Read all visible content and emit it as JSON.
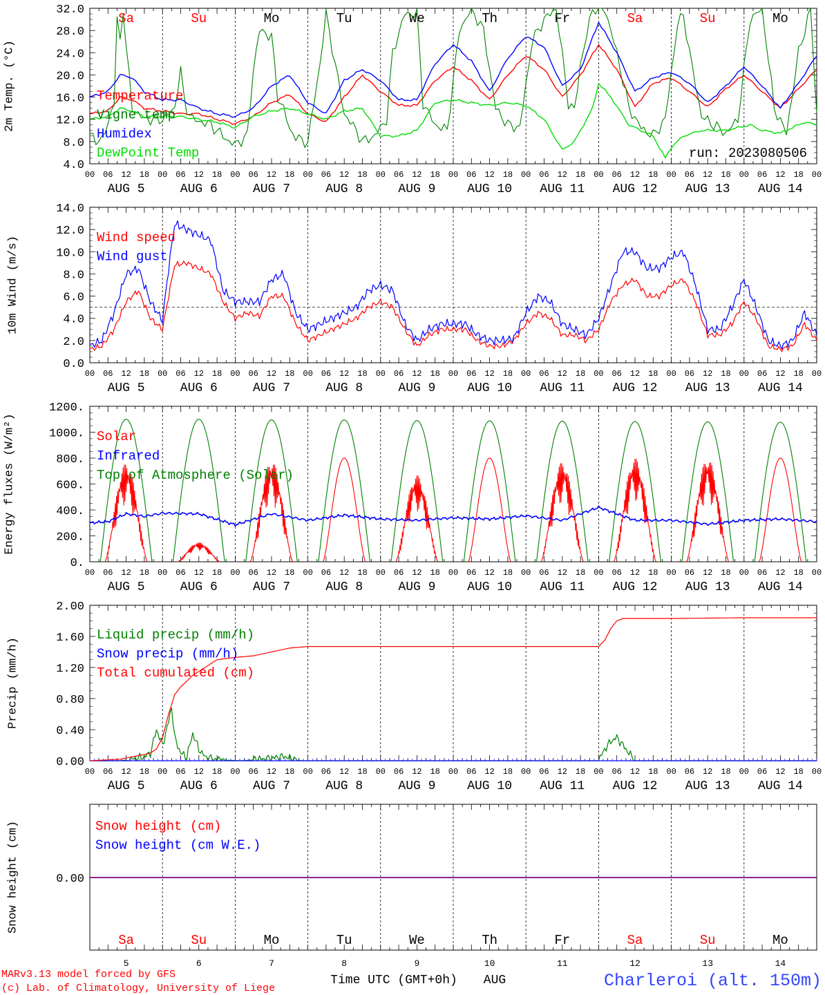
{
  "page": {
    "footer_left_1": "MARv3.13 model forced by GFS",
    "footer_left_2": "(c) Lab. of Climatology, University of Liege",
    "footer_center": "Time UTC (GMT+0h)",
    "footer_month": "AUG",
    "footer_right": "Charleroi (alt. 150m)",
    "colors": {
      "red": "#ff0000",
      "blue": "#0000ff",
      "dark_green": "#008000",
      "light_green": "#00dd00",
      "purple": "#800080"
    }
  },
  "axes": {
    "hour_ticks": [
      "00",
      "06",
      "12",
      "18",
      "00",
      "06",
      "12",
      "18",
      "00",
      "06",
      "12",
      "18",
      "00",
      "06",
      "12",
      "18",
      "00",
      "06",
      "12",
      "18",
      "00",
      "06",
      "12",
      "18",
      "00",
      "06",
      "12",
      "18",
      "00",
      "06",
      "12",
      "18",
      "00",
      "06",
      "12",
      "18",
      "00",
      "06",
      "12",
      "18",
      "00"
    ],
    "date_labels": [
      "AUG  5",
      "AUG  6",
      "AUG  7",
      "AUG  8",
      "AUG  9",
      "AUG 10",
      "AUG 11",
      "AUG 12",
      "AUG 13",
      "AUG 14"
    ],
    "day_names": [
      "Sa",
      "Su",
      "Mo",
      "Tu",
      "We",
      "Th",
      "Fr",
      "Sa",
      "Su",
      "Mo"
    ],
    "day_name_colors": [
      "#ff0000",
      "#ff0000",
      "#000000",
      "#000000",
      "#000000",
      "#000000",
      "#000000",
      "#ff0000",
      "#ff0000",
      "#000000"
    ],
    "day_numbers": [
      "5",
      "6",
      "7",
      "8",
      "9",
      "10",
      "11",
      "12",
      "13",
      "14"
    ]
  },
  "chart_data": [
    {
      "type": "line",
      "ylabel": "2m Temp. (°C)",
      "ylim": [
        4,
        32
      ],
      "yticks": [
        "4.0",
        "8.0",
        "12.0",
        "16.0",
        "20.0",
        "24.0",
        "28.0",
        "32.0"
      ],
      "annotation": "run: 2023080506",
      "x_unit": "hours since AUG 5 00 UTC",
      "series": [
        {
          "name": "Temperature",
          "color": "#ff0000",
          "x": [
            0,
            6,
            10,
            14,
            18,
            24,
            30,
            36,
            42,
            48,
            54,
            60,
            66,
            72,
            78,
            84,
            90,
            96,
            102,
            108,
            114,
            120,
            126,
            132,
            138,
            144,
            150,
            156,
            162,
            168,
            174,
            180,
            186,
            192,
            198,
            204,
            210,
            216,
            222,
            228,
            234,
            240
          ],
          "y": [
            13,
            13.5,
            16,
            15.5,
            14,
            13.5,
            13,
            13,
            12,
            11.2,
            12.5,
            15,
            16.5,
            13,
            11.5,
            16,
            20,
            17,
            14.5,
            14.5,
            19,
            21.5,
            19,
            15.5,
            20,
            23.5,
            21,
            16,
            20,
            25.5,
            21,
            14.2,
            18.5,
            19.5,
            17,
            14.2,
            17.5,
            20,
            17,
            14,
            17.5,
            21
          ]
        },
        {
          "name": "Vigne temp",
          "color": "#008000",
          "x": [
            0,
            4,
            8,
            9,
            10,
            11,
            12,
            14,
            16,
            18,
            24,
            28,
            30,
            31,
            32,
            34,
            40,
            46,
            48,
            52,
            54,
            56,
            60,
            62,
            64,
            66,
            70,
            72,
            76,
            78,
            80,
            84,
            88,
            90,
            94,
            98,
            100,
            104,
            108,
            110,
            114,
            118,
            122,
            126,
            130,
            134,
            138,
            142,
            146,
            150,
            154,
            158,
            160,
            162,
            166,
            170,
            174,
            178,
            182,
            186,
            190,
            194,
            196,
            198,
            202,
            206,
            210,
            214,
            218,
            222,
            226,
            230,
            234,
            238,
            240
          ],
          "y": [
            9,
            8,
            15,
            30,
            26,
            32,
            25,
            14,
            13,
            12,
            12,
            14,
            21,
            16,
            14,
            12,
            11,
            8,
            7.5,
            9,
            21,
            28,
            27,
            16,
            14,
            10,
            8,
            8,
            22,
            31,
            25,
            13,
            10,
            8,
            9,
            12,
            24,
            31,
            31,
            15,
            11,
            10,
            28,
            32,
            28,
            14,
            11,
            10.5,
            26,
            30,
            32,
            15,
            13.5,
            22,
            32,
            32,
            24,
            14,
            10.5,
            9,
            12,
            29,
            31,
            24,
            12.5,
            11,
            9.5,
            12,
            30,
            32,
            14,
            9.5,
            24,
            32,
            13
          ]
        },
        {
          "name": "Humidex",
          "color": "#0000ff",
          "x": [
            0,
            6,
            10,
            14,
            18,
            24,
            30,
            36,
            42,
            48,
            54,
            60,
            66,
            72,
            78,
            84,
            90,
            96,
            102,
            108,
            114,
            120,
            126,
            132,
            138,
            144,
            150,
            156,
            162,
            168,
            174,
            180,
            186,
            192,
            198,
            204,
            210,
            216,
            222,
            228,
            234,
            240
          ],
          "y": [
            16,
            17,
            20,
            19.5,
            17,
            15.5,
            15.5,
            14,
            13,
            12.5,
            14,
            18,
            20,
            15,
            13,
            19,
            21,
            19,
            15.5,
            15.5,
            22,
            25.5,
            22.5,
            17,
            23,
            27,
            25,
            18,
            21,
            29.5,
            24,
            17,
            19.5,
            20.5,
            18.5,
            15,
            18,
            21.5,
            18,
            14,
            18.5,
            23.5
          ]
        },
        {
          "name": "DewPoint Temp",
          "color": "#00dd00",
          "x": [
            0,
            6,
            10,
            14,
            18,
            24,
            30,
            36,
            42,
            48,
            54,
            60,
            66,
            72,
            78,
            84,
            90,
            96,
            102,
            108,
            114,
            120,
            126,
            132,
            138,
            144,
            150,
            156,
            160,
            166,
            168,
            172,
            178,
            186,
            190,
            192,
            196,
            202,
            210,
            218,
            222,
            228,
            236,
            240
          ],
          "y": [
            12,
            12.5,
            14,
            13.5,
            12.5,
            12.5,
            12.5,
            12,
            11.5,
            10.5,
            12.5,
            13.5,
            14,
            13,
            12,
            13.5,
            14,
            9,
            9,
            10,
            15,
            15.5,
            15,
            14.5,
            15,
            14.5,
            12,
            6.5,
            8,
            14,
            18.5,
            16,
            11,
            9,
            5,
            7,
            9,
            10,
            10,
            11,
            10,
            9.5,
            11.5,
            11
          ]
        }
      ]
    },
    {
      "type": "line",
      "ylabel": "10m Wind (m/s)",
      "ylim": [
        0,
        14
      ],
      "yticks": [
        "0.0",
        "2.0",
        "4.0",
        "6.0",
        "8.0",
        "10.0",
        "12.0",
        "14.0"
      ],
      "reference_line": 5,
      "series": [
        {
          "name": "Wind speed",
          "color": "#ff0000",
          "x": [
            0,
            4,
            8,
            12,
            16,
            20,
            24,
            26,
            28,
            32,
            36,
            40,
            44,
            48,
            52,
            56,
            60,
            64,
            68,
            72,
            76,
            80,
            84,
            88,
            92,
            96,
            100,
            104,
            108,
            112,
            116,
            120,
            124,
            128,
            132,
            136,
            140,
            144,
            148,
            152,
            156,
            160,
            164,
            168,
            172,
            176,
            180,
            184,
            188,
            192,
            196,
            200,
            204,
            208,
            212,
            216,
            220,
            224,
            228,
            232,
            236,
            240
          ],
          "y": [
            1.2,
            1.5,
            3,
            5.5,
            6.5,
            4,
            3,
            6,
            8.8,
            9,
            8.5,
            8,
            5.5,
            4,
            4.5,
            4.2,
            6,
            6,
            3.5,
            2,
            2.5,
            3,
            3.5,
            4,
            5,
            5.5,
            5,
            3,
            1.5,
            2.5,
            3,
            3,
            3,
            2,
            1.5,
            1.5,
            2,
            3.5,
            4.5,
            4,
            2.5,
            2.5,
            2,
            3,
            5.5,
            7,
            7.5,
            6,
            6,
            7,
            7.5,
            5.5,
            2.5,
            2.5,
            3.5,
            5.5,
            4,
            1.5,
            1.2,
            1.5,
            3.5,
            2
          ]
        },
        {
          "name": "Wind gust",
          "color": "#0000ff",
          "x": [
            0,
            4,
            8,
            12,
            16,
            20,
            24,
            26,
            28,
            32,
            36,
            40,
            44,
            48,
            52,
            56,
            60,
            64,
            68,
            72,
            76,
            80,
            84,
            88,
            92,
            96,
            100,
            104,
            108,
            112,
            116,
            120,
            124,
            128,
            132,
            136,
            140,
            144,
            148,
            152,
            156,
            160,
            164,
            168,
            172,
            176,
            180,
            184,
            188,
            192,
            196,
            200,
            204,
            208,
            212,
            216,
            220,
            224,
            228,
            232,
            236,
            240
          ],
          "y": [
            1.5,
            2,
            4.5,
            8,
            8.5,
            5.5,
            3.8,
            8.5,
            12.5,
            12,
            11.5,
            11,
            6.5,
            5.5,
            5.5,
            5.5,
            7.5,
            8,
            4.5,
            3,
            3.5,
            4,
            4.5,
            5,
            6.5,
            7,
            6.5,
            3.5,
            2,
            3,
            3.5,
            3.5,
            3.5,
            2.5,
            2,
            2,
            2.2,
            4.5,
            6,
            5.5,
            3.5,
            3,
            2.5,
            4,
            7,
            10,
            10,
            8.5,
            8.5,
            9.5,
            10,
            7,
            3,
            3,
            5,
            7.5,
            5,
            2,
            1.5,
            2,
            4.5,
            2.5
          ]
        }
      ]
    },
    {
      "type": "line",
      "ylabel": "Energy fluxes (W/m²)",
      "ylim": [
        0,
        1200
      ],
      "yticks": [
        "0.",
        "200.",
        "400.",
        "600.",
        "800.",
        "1000.",
        "1200."
      ],
      "series": [
        {
          "name": "Solar",
          "color": "#ff0000",
          "daily_peak": [
            760,
            150,
            780,
            800,
            670,
            800,
            770,
            800,
            800,
            800
          ]
        },
        {
          "name": "Infrared",
          "color": "#0000ff",
          "x": [
            0,
            6,
            12,
            18,
            24,
            36,
            48,
            60,
            72,
            84,
            96,
            108,
            120,
            132,
            144,
            156,
            168,
            180,
            192,
            204,
            216,
            228,
            240
          ],
          "y": [
            300,
            310,
            370,
            350,
            375,
            370,
            285,
            370,
            320,
            360,
            330,
            320,
            340,
            330,
            355,
            320,
            420,
            320,
            320,
            290,
            320,
            330,
            310
          ]
        },
        {
          "name": "Top of Atmosphere (Solar)",
          "color": "#008000",
          "daily_peak": [
            1100,
            1100,
            1095,
            1095,
            1090,
            1088,
            1085,
            1083,
            1080,
            1078
          ]
        }
      ]
    },
    {
      "type": "line",
      "ylabel": "Precip (mm/h)",
      "ylim": [
        0,
        2
      ],
      "yticks": [
        "0.00",
        "0.40",
        "0.80",
        "1.20",
        "1.60",
        "2.00"
      ],
      "series": [
        {
          "name": "Liquid precip (mm/h)",
          "color": "#008000",
          "x": [
            0,
            10,
            14,
            18,
            20,
            22,
            24,
            26,
            27,
            28,
            30,
            32,
            34,
            36,
            38,
            40,
            44,
            50,
            56,
            60,
            64,
            66,
            70,
            168,
            170,
            172,
            174,
            176,
            178,
            180,
            240
          ],
          "y": [
            0,
            0,
            0.02,
            0.05,
            0.1,
            0.4,
            0.2,
            0.5,
            0.7,
            0.3,
            0.1,
            0.05,
            0.35,
            0.15,
            0.05,
            0.03,
            0.01,
            0,
            0.02,
            0.03,
            0.06,
            0.03,
            0,
            0,
            0.15,
            0.25,
            0.3,
            0.2,
            0.1,
            0,
            0
          ]
        },
        {
          "name": "Snow precip (mm/h)",
          "color": "#0000ff",
          "x": [
            0,
            240
          ],
          "y": [
            0,
            0
          ]
        },
        {
          "name": "Total cumulated (cm)",
          "color": "#ff0000",
          "x": [
            0,
            10,
            14,
            18,
            20,
            22,
            24,
            26,
            28,
            30,
            34,
            38,
            42,
            48,
            54,
            60,
            66,
            72,
            84,
            96,
            168,
            170,
            172,
            174,
            176,
            180,
            192,
            216,
            240
          ],
          "y": [
            0,
            0.02,
            0.05,
            0.08,
            0.1,
            0.15,
            0.3,
            0.6,
            0.85,
            0.95,
            1.1,
            1.2,
            1.3,
            1.33,
            1.35,
            1.4,
            1.45,
            1.47,
            1.47,
            1.47,
            1.47,
            1.55,
            1.7,
            1.8,
            1.83,
            1.83,
            1.83,
            1.84,
            1.84
          ]
        }
      ]
    },
    {
      "type": "line",
      "ylabel": "Snow height (cm)",
      "ytick": "0.00",
      "series": [
        {
          "name": "Snow height (cm)",
          "color": "#ff0000",
          "x": [
            0,
            240
          ],
          "y": [
            0,
            0
          ]
        },
        {
          "name": "Snow height (cm W.E.)",
          "color": "#0000ff",
          "x": [
            0,
            240
          ],
          "y": [
            0,
            0
          ]
        }
      ]
    }
  ]
}
